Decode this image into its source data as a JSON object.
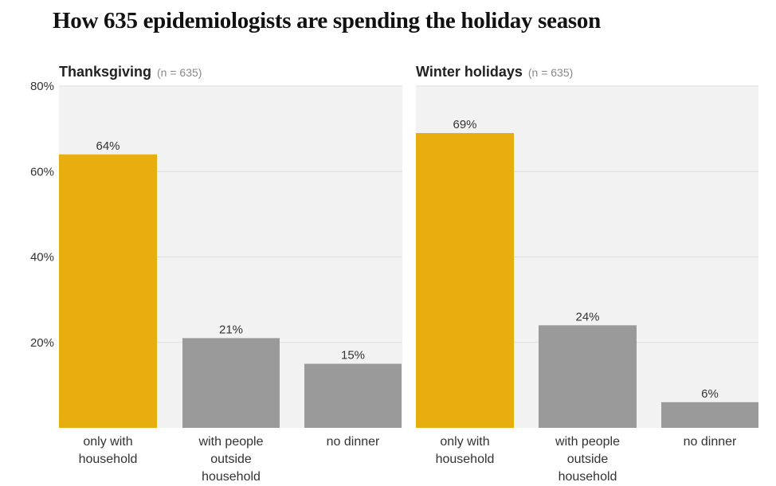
{
  "title": "How 635 epidemiologists are spending the holiday season",
  "colors": {
    "highlight": "#e8ae10",
    "bar": "#9a9a9a",
    "panel_bg": "#f2f2f2",
    "grid": "#dddddd"
  },
  "chart_data": [
    {
      "type": "bar",
      "title": "Thanksgiving",
      "subtitle": "(n = 635)",
      "categories": [
        "only with household",
        "with people outside household",
        "no dinner"
      ],
      "category_lines": [
        [
          "only with",
          "household"
        ],
        [
          "with people",
          "outside",
          "household"
        ],
        [
          "no dinner"
        ]
      ],
      "values": [
        64,
        21,
        15
      ],
      "data_labels": [
        "64%",
        "21%",
        "15%"
      ],
      "highlight_index": 0,
      "ylim": [
        0,
        80
      ],
      "yticks": [
        20,
        40,
        60,
        80
      ],
      "ytick_labels": [
        "20%",
        "40%",
        "60%",
        "80%"
      ],
      "grid": true
    },
    {
      "type": "bar",
      "title": "Winter holidays",
      "subtitle": "(n = 635)",
      "categories": [
        "only with household",
        "with people outside household",
        "no dinner"
      ],
      "category_lines": [
        [
          "only with",
          "household"
        ],
        [
          "with people",
          "outside",
          "household"
        ],
        [
          "no dinner"
        ]
      ],
      "values": [
        69,
        24,
        6
      ],
      "data_labels": [
        "69%",
        "24%",
        "6%"
      ],
      "highlight_index": 0,
      "ylim": [
        0,
        80
      ],
      "yticks": [
        20,
        40,
        60,
        80
      ],
      "ytick_labels": [
        "20%",
        "40%",
        "60%",
        "80%"
      ],
      "grid": true
    }
  ]
}
